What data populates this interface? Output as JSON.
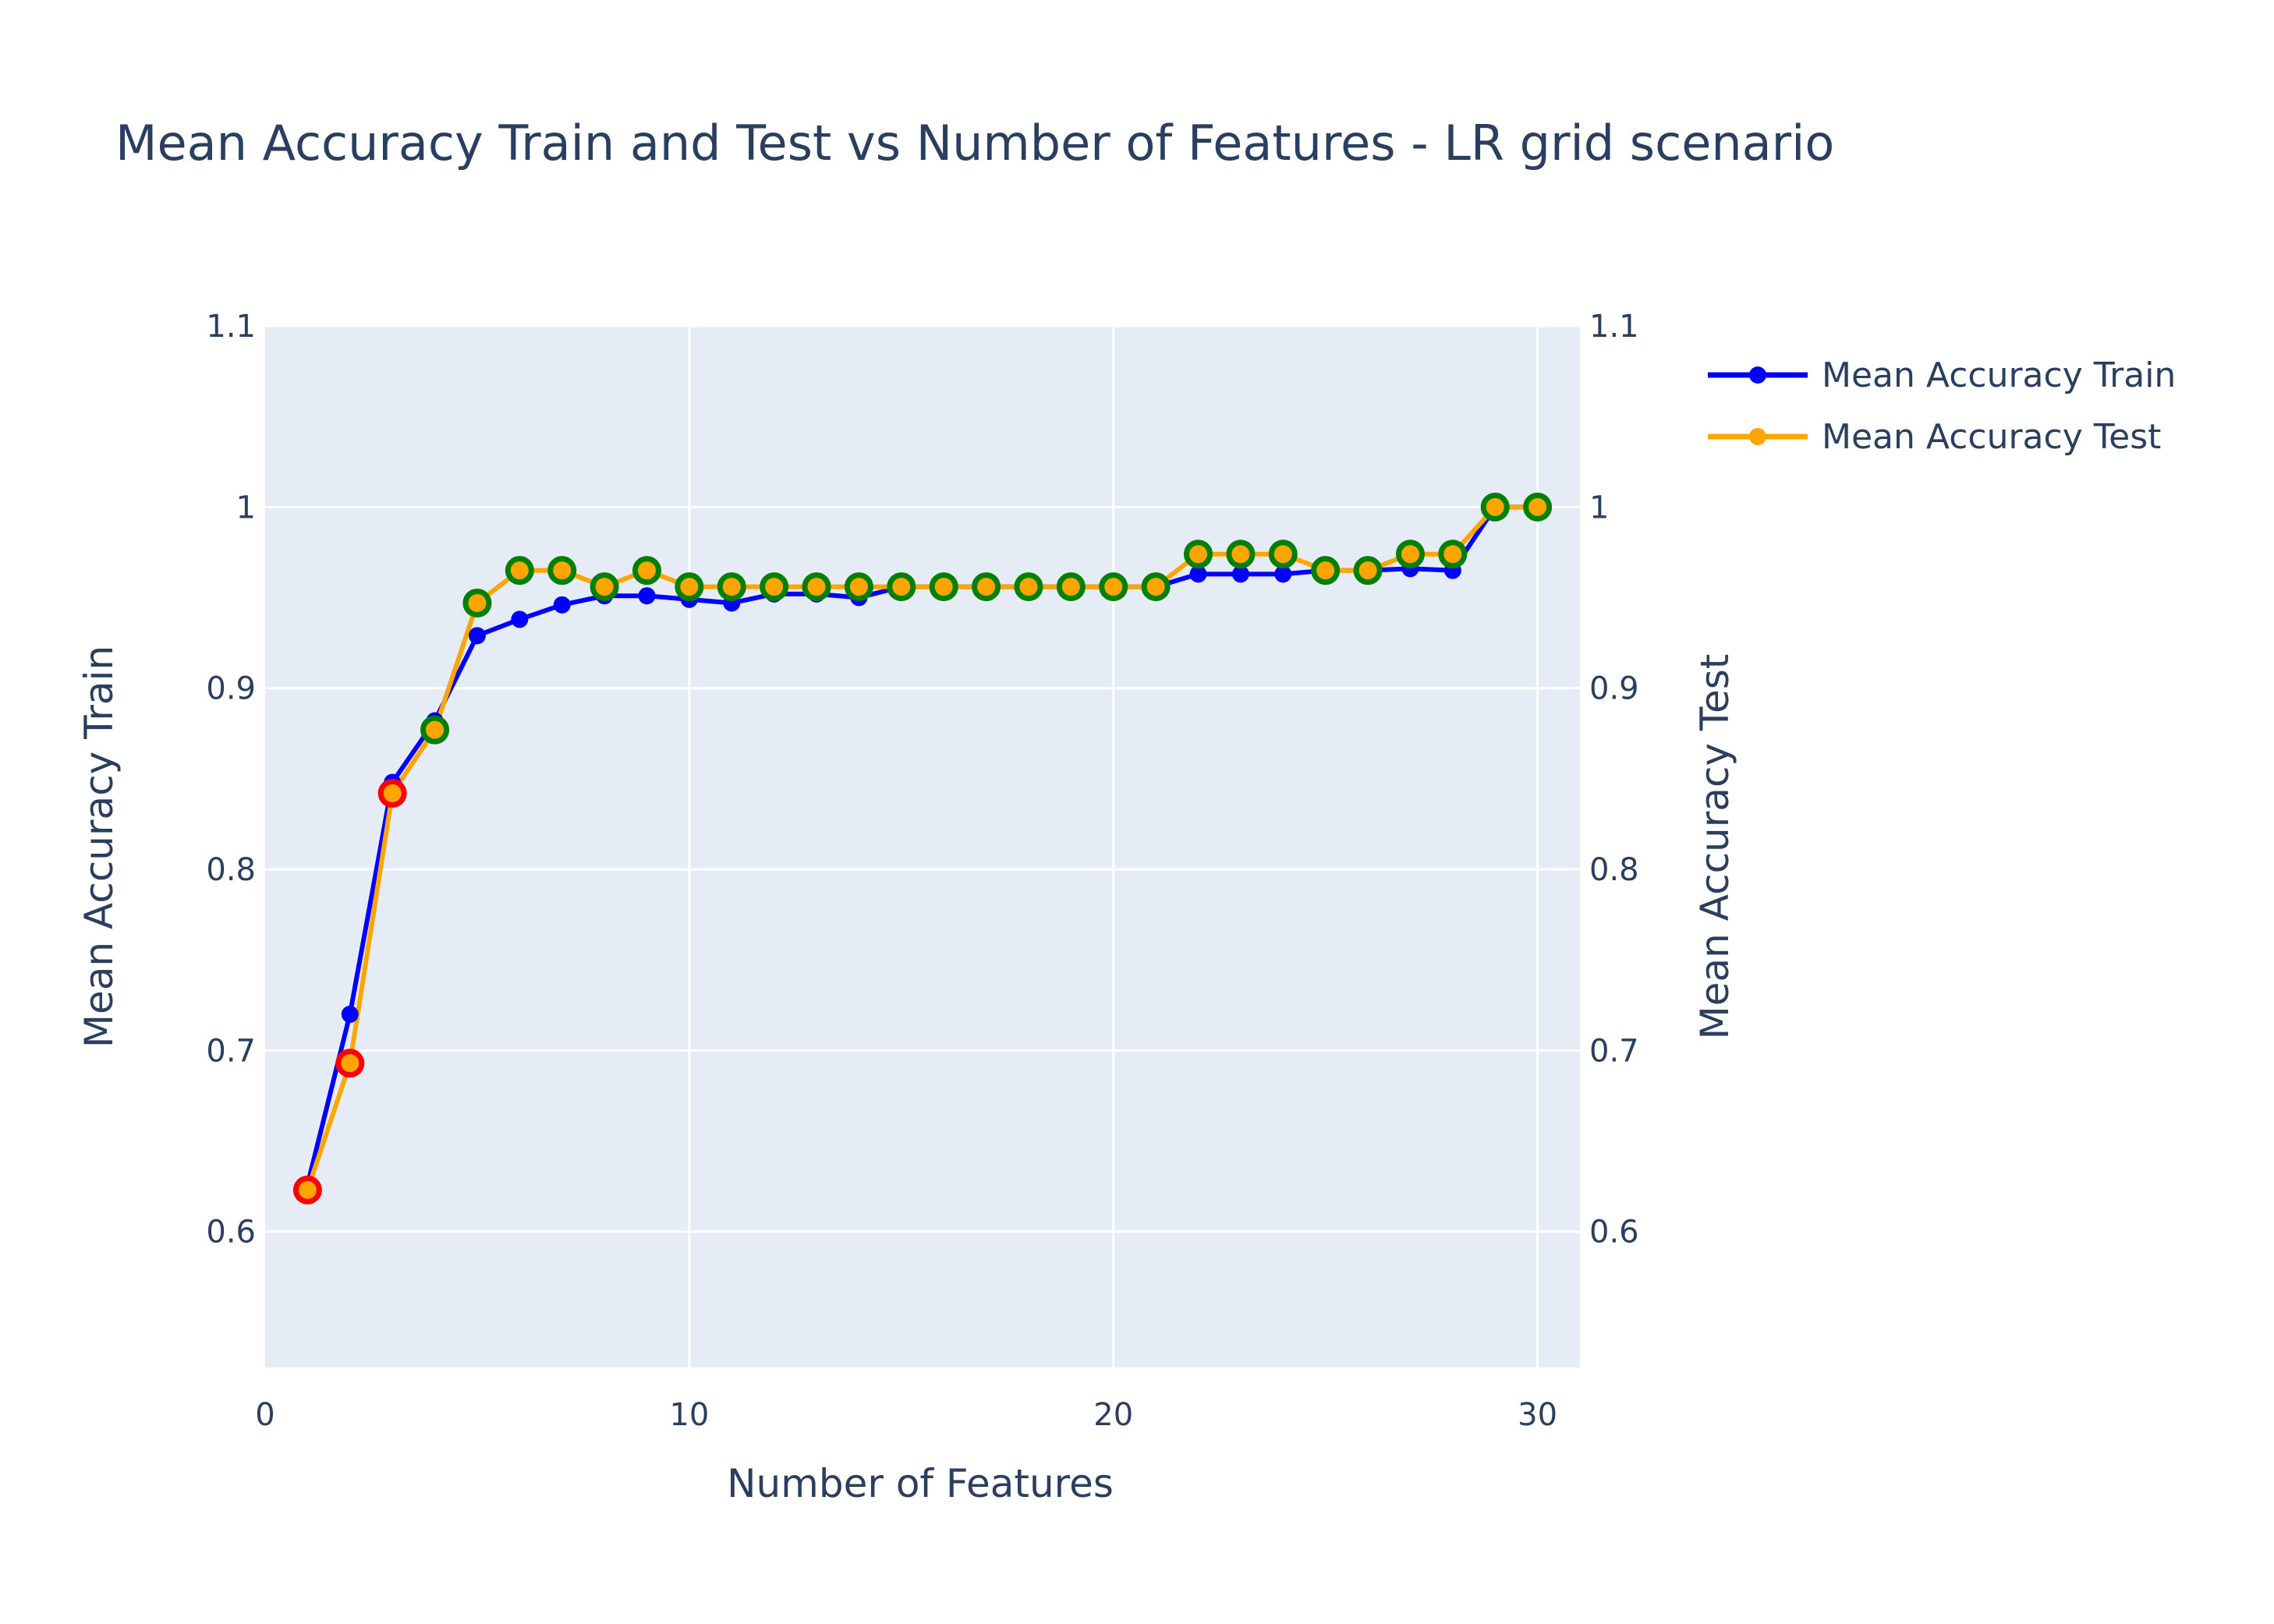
{
  "chart_data": {
    "type": "line",
    "title": "Mean Accuracy Train and Test vs Number of Features - LR grid scenario",
    "xlabel": "Number of Features",
    "ylabel_left": "Mean Accuracy Train",
    "ylabel_right": "Mean Accuracy Test",
    "xlim": [
      0,
      31
    ],
    "ylim": [
      0.525,
      1.1
    ],
    "x_ticks": [
      0,
      10,
      20,
      30
    ],
    "x_tick_labels": [
      "0",
      "10",
      "20",
      "30"
    ],
    "y_ticks": [
      0.6,
      0.7,
      0.8,
      0.9,
      1.0,
      1.1
    ],
    "y_tick_labels": [
      "0.6",
      "0.7",
      "0.8",
      "0.9",
      "1",
      "1.1"
    ],
    "grid": true,
    "legend_position": "top-right outside",
    "x": [
      1,
      2,
      3,
      4,
      5,
      6,
      7,
      8,
      9,
      10,
      11,
      12,
      13,
      14,
      15,
      16,
      17,
      18,
      19,
      20,
      21,
      22,
      23,
      24,
      25,
      26,
      27,
      28,
      29,
      30
    ],
    "series": [
      {
        "name": "Mean Accuracy Train",
        "color": "#0000ff",
        "axis": "left",
        "values": [
          0.626,
          0.72,
          0.848,
          0.882,
          0.929,
          0.938,
          0.946,
          0.951,
          0.951,
          0.949,
          0.947,
          0.952,
          0.952,
          0.95,
          0.956,
          0.956,
          0.956,
          0.956,
          0.956,
          0.956,
          0.956,
          0.963,
          0.963,
          0.963,
          0.965,
          0.965,
          0.966,
          0.965,
          1.0,
          1.0
        ]
      },
      {
        "name": "Mean Accuracy Test",
        "color": "#ffa500",
        "axis": "right",
        "values": [
          0.623,
          0.693,
          0.842,
          0.877,
          0.947,
          0.965,
          0.965,
          0.956,
          0.965,
          0.956,
          0.956,
          0.956,
          0.956,
          0.956,
          0.956,
          0.956,
          0.956,
          0.956,
          0.956,
          0.956,
          0.956,
          0.974,
          0.974,
          0.974,
          0.965,
          0.965,
          0.974,
          0.974,
          1.0,
          1.0
        ],
        "marker_outline_colors": [
          "#ff0000",
          "#ff0000",
          "#ff0000",
          "#008000",
          "#008000",
          "#008000",
          "#008000",
          "#008000",
          "#008000",
          "#008000",
          "#008000",
          "#008000",
          "#008000",
          "#008000",
          "#008000",
          "#008000",
          "#008000",
          "#008000",
          "#008000",
          "#008000",
          "#008000",
          "#008000",
          "#008000",
          "#008000",
          "#008000",
          "#008000",
          "#008000",
          "#008000",
          "#008000",
          "#008000"
        ]
      }
    ],
    "colors": {
      "plot_bg": "#e5ecf6",
      "grid": "#ffffff",
      "text": "#2a3f5f"
    }
  }
}
